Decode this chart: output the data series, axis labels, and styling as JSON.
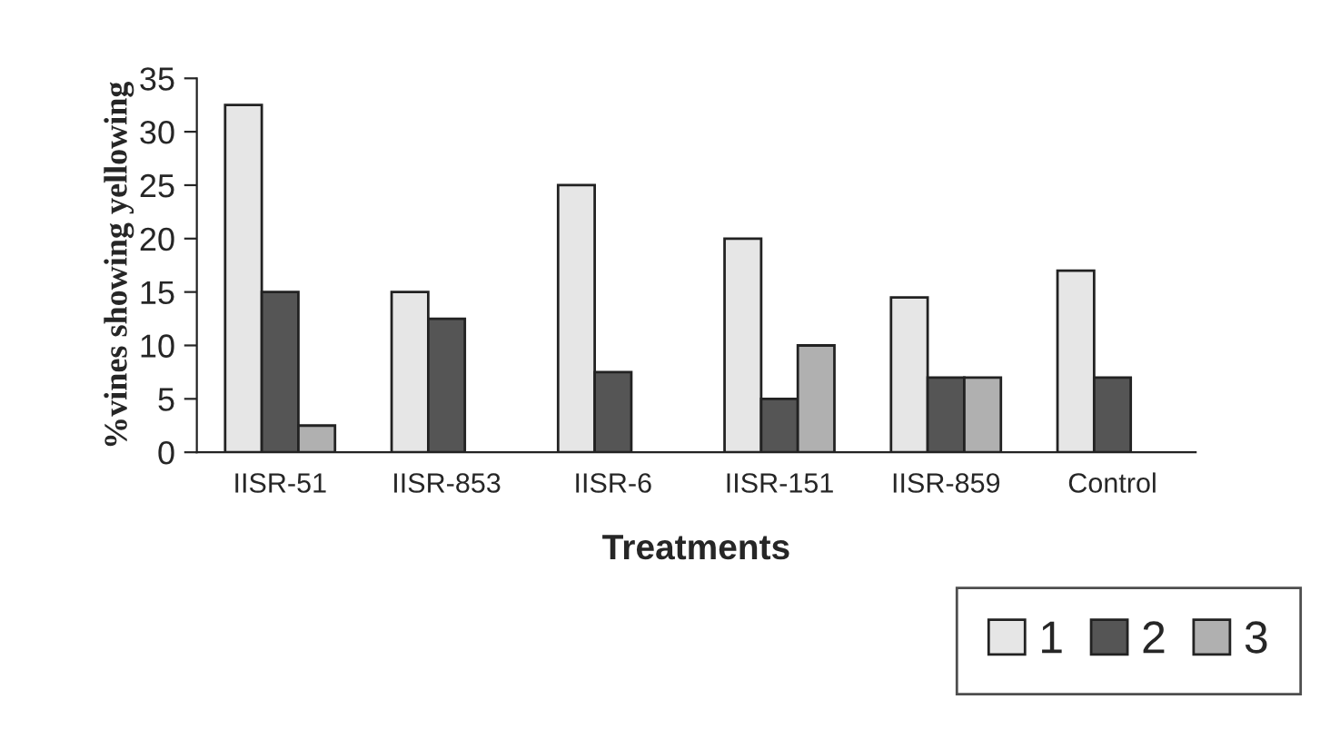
{
  "chart_data": {
    "type": "bar",
    "xlabel": "Treatments",
    "ylabel": "%vines showing yellowing",
    "categories": [
      "IISR-51",
      "IISR-853",
      "IISR-6",
      "IISR-151",
      "IISR-859",
      "Control"
    ],
    "series": [
      {
        "name": "1",
        "color": "#e6e6e6",
        "values": [
          32.5,
          15,
          25,
          20,
          14.5,
          17
        ]
      },
      {
        "name": "2",
        "color": "#555555",
        "values": [
          15,
          12.5,
          7.5,
          5,
          7,
          7
        ]
      },
      {
        "name": "3",
        "color": "#b0b0b0",
        "values": [
          2.5,
          null,
          null,
          10,
          7,
          null
        ]
      }
    ],
    "ylim": [
      0,
      35
    ],
    "yticks": [
      0,
      5,
      10,
      15,
      20,
      25,
      30,
      35
    ],
    "legend": "bottom right",
    "grid": false
  }
}
